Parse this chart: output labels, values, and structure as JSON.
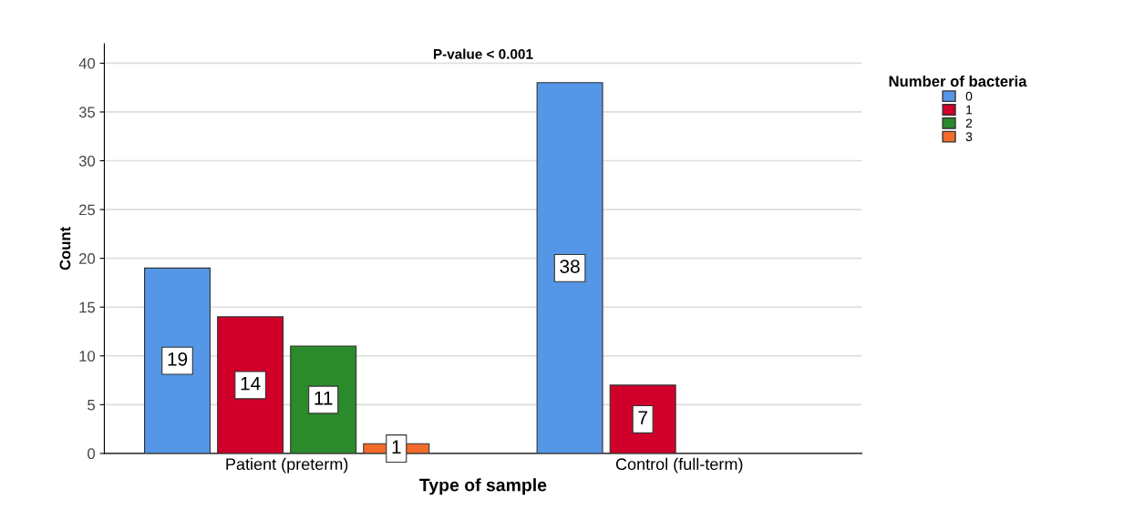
{
  "chart_data": {
    "type": "bar",
    "title": "P-value < 0.001",
    "xlabel": "Type of sample",
    "ylabel": "Count",
    "legend_title": "Number of bacteria",
    "categories": [
      "Patient (preterm)",
      "Control (full-term)"
    ],
    "series": [
      {
        "name": "0",
        "color": "#5596e6",
        "values": [
          19,
          38
        ]
      },
      {
        "name": "1",
        "color": "#d1002b",
        "values": [
          14,
          7
        ]
      },
      {
        "name": "2",
        "color": "#2b8a2b",
        "values": [
          11,
          null
        ]
      },
      {
        "name": "3",
        "color": "#f26b2a",
        "values": [
          1,
          null
        ]
      }
    ],
    "ylim": [
      0,
      42
    ],
    "yticks": [
      0,
      5,
      10,
      15,
      20,
      25,
      30,
      35,
      40
    ],
    "grid": "y",
    "legend": "top right",
    "data_labels": true
  }
}
